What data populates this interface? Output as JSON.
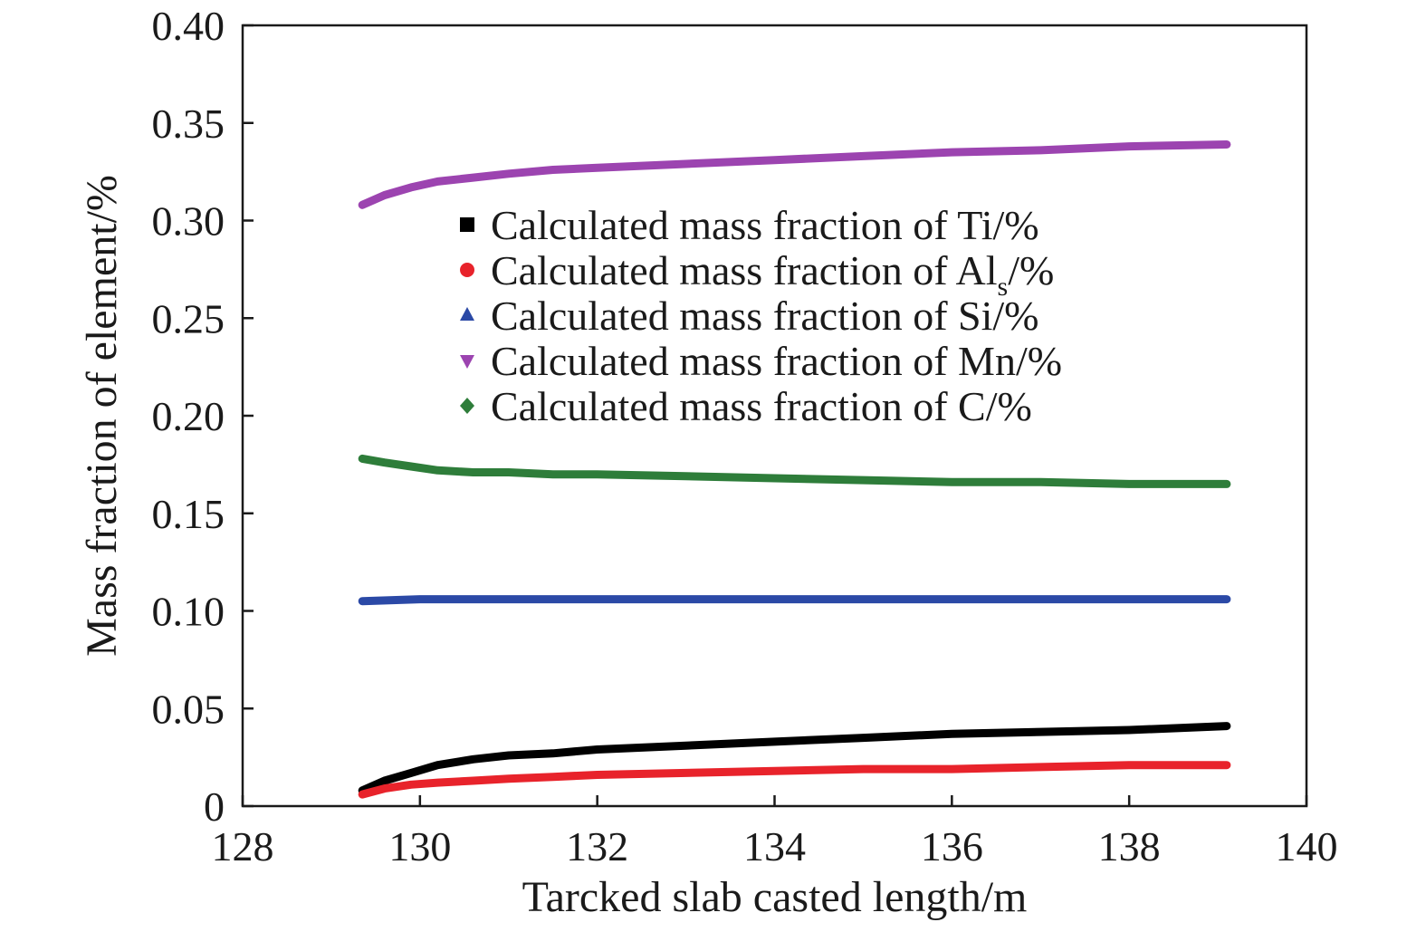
{
  "chart_data": {
    "type": "line",
    "xlabel": "Tarcked slab casted length/m",
    "ylabel": "Mass fraction of element/%",
    "xlim": [
      128,
      140
    ],
    "ylim": [
      0,
      0.4
    ],
    "x_ticks": [
      "128",
      "130",
      "132",
      "134",
      "136",
      "138",
      "140"
    ],
    "y_ticks": [
      "0",
      "0.05",
      "0.10",
      "0.15",
      "0.20",
      "0.25",
      "0.30",
      "0.35",
      "0.40"
    ],
    "legend_position": "upper-center",
    "series": [
      {
        "name": "Calculated mass fraction of Ti/%",
        "legend_prefix": "Calculated mass fraction of Ti",
        "legend_sub": "",
        "legend_suffix": "/%",
        "marker": "square",
        "color": "#000000",
        "x": [
          129.35,
          129.6,
          129.9,
          130.2,
          130.6,
          131.0,
          131.5,
          132.0,
          133.0,
          134.0,
          135.0,
          136.0,
          137.0,
          138.0,
          139.1
        ],
        "y": [
          0.008,
          0.013,
          0.017,
          0.021,
          0.024,
          0.026,
          0.027,
          0.029,
          0.031,
          0.033,
          0.035,
          0.037,
          0.038,
          0.039,
          0.041
        ]
      },
      {
        "name": "Calculated mass fraction of Als/%",
        "legend_prefix": "Calculated mass fraction of Al",
        "legend_sub": "s",
        "legend_suffix": "/%",
        "marker": "circle",
        "color": "#e8232b",
        "x": [
          129.35,
          129.6,
          129.9,
          130.2,
          130.6,
          131.0,
          131.5,
          132.0,
          133.0,
          134.0,
          135.0,
          136.0,
          137.0,
          138.0,
          139.1
        ],
        "y": [
          0.006,
          0.009,
          0.011,
          0.012,
          0.013,
          0.014,
          0.015,
          0.016,
          0.017,
          0.018,
          0.019,
          0.019,
          0.02,
          0.021,
          0.021
        ]
      },
      {
        "name": "Calculated mass fraction of Si/%",
        "legend_prefix": "Calculated mass fraction of Si",
        "legend_sub": "",
        "legend_suffix": "/%",
        "marker": "triangle-up",
        "color": "#2b49a6",
        "x": [
          129.35,
          130.0,
          131.0,
          132.0,
          134.0,
          136.0,
          138.0,
          139.1
        ],
        "y": [
          0.105,
          0.106,
          0.106,
          0.106,
          0.106,
          0.106,
          0.106,
          0.106
        ]
      },
      {
        "name": "Calculated mass fraction of Mn/%",
        "legend_prefix": "Calculated mass fraction of Mn",
        "legend_sub": "",
        "legend_suffix": "/%",
        "marker": "triangle-down",
        "color": "#9c44b0",
        "x": [
          129.35,
          129.6,
          129.9,
          130.2,
          130.6,
          131.0,
          131.5,
          132.0,
          133.0,
          134.0,
          135.0,
          136.0,
          137.0,
          138.0,
          139.1
        ],
        "y": [
          0.308,
          0.313,
          0.317,
          0.32,
          0.322,
          0.324,
          0.326,
          0.327,
          0.329,
          0.331,
          0.333,
          0.335,
          0.336,
          0.338,
          0.339
        ]
      },
      {
        "name": "Calculated mass fraction of C/%",
        "legend_prefix": "Calculated mass fraction of C",
        "legend_sub": "",
        "legend_suffix": "/%",
        "marker": "diamond",
        "color": "#2e7d3a",
        "x": [
          129.35,
          129.6,
          129.9,
          130.2,
          130.6,
          131.0,
          131.5,
          132.0,
          133.0,
          134.0,
          135.0,
          136.0,
          137.0,
          138.0,
          139.1
        ],
        "y": [
          0.178,
          0.176,
          0.174,
          0.172,
          0.171,
          0.171,
          0.17,
          0.17,
          0.169,
          0.168,
          0.167,
          0.166,
          0.166,
          0.165,
          0.165
        ]
      }
    ]
  }
}
